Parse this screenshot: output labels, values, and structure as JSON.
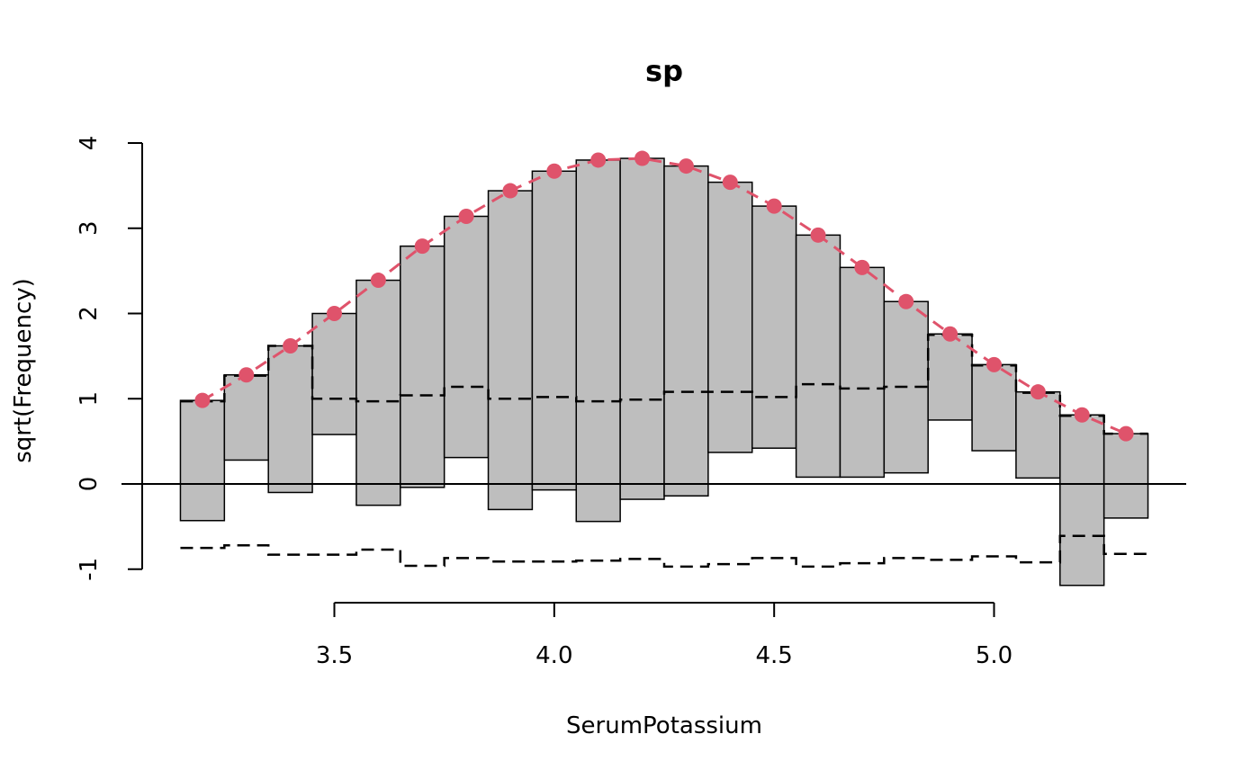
{
  "chart_data": {
    "type": "bar",
    "title": "sp",
    "xlabel": "SerumPotassium",
    "ylabel": "sqrt(Frequency)",
    "xlim": [
      3.1,
      5.45
    ],
    "ylim": [
      -1.2,
      4.0
    ],
    "x_ticks": [
      3.5,
      4.0,
      4.5,
      5.0
    ],
    "x_tick_labels": [
      "3.5",
      "4.0",
      "4.5",
      "5.0"
    ],
    "y_ticks": [
      -1,
      0,
      1,
      2,
      3,
      4
    ],
    "y_tick_labels": [
      "-1",
      "0",
      "1",
      "2",
      "3",
      "4"
    ],
    "bin_width": 0.1,
    "bins": [
      {
        "x": 3.2,
        "expected": 0.98,
        "bottom": -0.43,
        "lower": -0.75,
        "upper": 0.97
      },
      {
        "x": 3.3,
        "expected": 1.28,
        "bottom": 0.28,
        "lower": -0.72,
        "upper": 1.27
      },
      {
        "x": 3.4,
        "expected": 1.62,
        "bottom": -0.1,
        "lower": -0.83,
        "upper": 1.62
      },
      {
        "x": 3.5,
        "expected": 2.0,
        "bottom": 0.58,
        "lower": -0.83,
        "upper": 1.0
      },
      {
        "x": 3.6,
        "expected": 2.39,
        "bottom": -0.25,
        "lower": -0.77,
        "upper": 0.97
      },
      {
        "x": 3.7,
        "expected": 2.79,
        "bottom": -0.04,
        "lower": -0.96,
        "upper": 1.04
      },
      {
        "x": 3.8,
        "expected": 3.14,
        "bottom": 0.31,
        "lower": -0.87,
        "upper": 1.14
      },
      {
        "x": 3.9,
        "expected": 3.44,
        "bottom": -0.3,
        "lower": -0.91,
        "upper": 1.0
      },
      {
        "x": 4.0,
        "expected": 3.67,
        "bottom": -0.07,
        "lower": -0.91,
        "upper": 1.02
      },
      {
        "x": 4.1,
        "expected": 3.8,
        "bottom": -0.44,
        "lower": -0.9,
        "upper": 0.97
      },
      {
        "x": 4.2,
        "expected": 3.82,
        "bottom": -0.18,
        "lower": -0.88,
        "upper": 0.99
      },
      {
        "x": 4.3,
        "expected": 3.73,
        "bottom": -0.14,
        "lower": -0.97,
        "upper": 1.08
      },
      {
        "x": 4.4,
        "expected": 3.54,
        "bottom": 0.37,
        "lower": -0.94,
        "upper": 1.08
      },
      {
        "x": 4.5,
        "expected": 3.26,
        "bottom": 0.42,
        "lower": -0.87,
        "upper": 1.02
      },
      {
        "x": 4.6,
        "expected": 2.92,
        "bottom": 0.08,
        "lower": -0.97,
        "upper": 1.17
      },
      {
        "x": 4.7,
        "expected": 2.54,
        "bottom": 0.08,
        "lower": -0.93,
        "upper": 1.12
      },
      {
        "x": 4.8,
        "expected": 2.14,
        "bottom": 0.13,
        "lower": -0.87,
        "upper": 1.14
      },
      {
        "x": 4.9,
        "expected": 1.76,
        "bottom": 0.75,
        "lower": -0.89,
        "upper": 1.75
      },
      {
        "x": 5.0,
        "expected": 1.4,
        "bottom": 0.39,
        "lower": -0.85,
        "upper": 1.39
      },
      {
        "x": 5.1,
        "expected": 1.08,
        "bottom": 0.07,
        "lower": -0.92,
        "upper": 1.07
      },
      {
        "x": 5.2,
        "expected": 0.81,
        "bottom": -1.19,
        "lower": -0.61,
        "upper": 0.8
      },
      {
        "x": 5.3,
        "expected": 0.59,
        "bottom": -0.4,
        "lower": -0.82,
        "upper": 0.59
      }
    ],
    "colors": {
      "bar_fill": "#bebebe",
      "bar_stroke": "#000000",
      "fit_line": "#df536b",
      "fit_points": "#df536b",
      "reference_line": "#000000",
      "confidence_lines": "#000000"
    },
    "reference_y": 0,
    "grid": false
  }
}
